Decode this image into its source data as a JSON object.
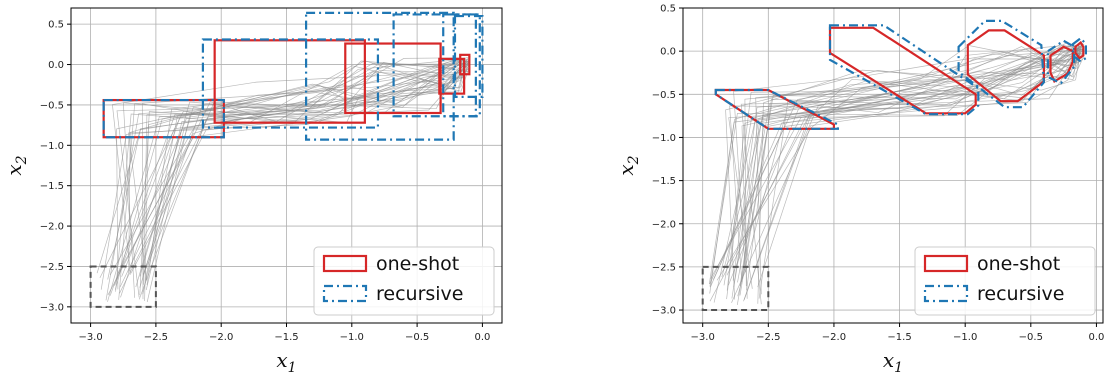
{
  "chart_data": [
    {
      "type": "line",
      "xlabel": "x1",
      "ylabel": "x2",
      "xlim": [
        -3.15,
        0.15
      ],
      "ylim": [
        -3.2,
        0.7
      ],
      "xticks": [
        -3.0,
        -2.5,
        -2.0,
        -1.5,
        -1.0,
        -0.5,
        0.0
      ],
      "xtick_labels": [
        "−3.0",
        "−2.5",
        "−2.0",
        "−1.5",
        "−1.0",
        "−0.5",
        "0.0"
      ],
      "yticks": [
        0.5,
        0.0,
        -0.5,
        -1.0,
        -1.5,
        -2.0,
        -2.5,
        -3.0
      ],
      "ytick_labels": [
        "0.5",
        "0.0",
        "−0.5",
        "−1.0",
        "−1.5",
        "−2.0",
        "−2.5",
        "−3.0"
      ],
      "grid": true,
      "legend_position": "bottom-right",
      "legend": [
        {
          "label": "one-shot",
          "color": "#d62728",
          "style": "solid"
        },
        {
          "label": "recursive",
          "color": "#1f77b4",
          "style": "dashdot"
        }
      ],
      "initial_set": {
        "x": [
          -3.0,
          -2.5
        ],
        "y": [
          -3.0,
          -2.5
        ],
        "color": "#555555",
        "style": "dashed"
      },
      "reach_sets": [
        {
          "method": "one-shot",
          "shape": "box",
          "x": [
            -2.9,
            -1.98
          ],
          "y": [
            -0.9,
            -0.44
          ]
        },
        {
          "method": "one-shot",
          "shape": "box",
          "x": [
            -2.05,
            -0.9
          ],
          "y": [
            -0.72,
            0.3
          ]
        },
        {
          "method": "one-shot",
          "shape": "box",
          "x": [
            -1.05,
            -0.32
          ],
          "y": [
            -0.6,
            0.26
          ]
        },
        {
          "method": "one-shot",
          "shape": "box",
          "x": [
            -0.33,
            -0.14
          ],
          "y": [
            -0.36,
            0.07
          ]
        },
        {
          "method": "one-shot",
          "shape": "box",
          "x": [
            -0.17,
            -0.1
          ],
          "y": [
            -0.12,
            0.12
          ]
        },
        {
          "method": "recursive",
          "shape": "box",
          "x": [
            -2.9,
            -1.98
          ],
          "y": [
            -0.9,
            -0.44
          ]
        },
        {
          "method": "recursive",
          "shape": "box",
          "x": [
            -2.14,
            -0.8
          ],
          "y": [
            -0.78,
            0.31
          ]
        },
        {
          "method": "recursive",
          "shape": "box",
          "x": [
            -1.35,
            -0.22
          ],
          "y": [
            -0.93,
            0.64
          ]
        },
        {
          "method": "recursive",
          "shape": "box",
          "x": [
            -0.68,
            -0.02
          ],
          "y": [
            -0.64,
            0.62
          ]
        },
        {
          "method": "recursive",
          "shape": "box",
          "x": [
            -0.3,
            -0.05
          ],
          "y": [
            -0.64,
            0.62
          ]
        },
        {
          "method": "recursive",
          "shape": "box",
          "x": [
            -0.21,
            0.0
          ],
          "y": [
            -0.4,
            0.6
          ]
        }
      ]
    },
    {
      "type": "line",
      "xlabel": "x1",
      "ylabel": "x2",
      "xlim": [
        -3.15,
        0.05
      ],
      "ylim": [
        -3.15,
        0.5
      ],
      "xticks": [
        -3.0,
        -2.5,
        -2.0,
        -1.5,
        -1.0,
        -0.5,
        0.0
      ],
      "xtick_labels": [
        "−3.0",
        "−2.5",
        "−2.0",
        "−1.5",
        "−1.0",
        "−0.5",
        "0.0"
      ],
      "yticks": [
        0.5,
        0.0,
        -0.5,
        -1.0,
        -1.5,
        -2.0,
        -2.5,
        -3.0
      ],
      "ytick_labels": [
        "0.5",
        "0.0",
        "−0.5",
        "−1.0",
        "−1.5",
        "−2.0",
        "−2.5",
        "−3.0"
      ],
      "grid": true,
      "legend_position": "bottom-right",
      "legend": [
        {
          "label": "one-shot",
          "color": "#d62728",
          "style": "solid"
        },
        {
          "label": "recursive",
          "color": "#1f77b4",
          "style": "dashdot"
        }
      ],
      "initial_set": {
        "x": [
          -3.0,
          -2.5
        ],
        "y": [
          -3.0,
          -2.5
        ],
        "color": "#555555",
        "style": "dashed"
      },
      "reach_sets": [
        {
          "method": "one-shot",
          "shape": "polygon",
          "points": [
            [
              -2.9,
              -0.45
            ],
            [
              -2.5,
              -0.45
            ],
            [
              -2.0,
              -0.85
            ],
            [
              -2.0,
              -0.9
            ],
            [
              -2.5,
              -0.9
            ],
            [
              -2.9,
              -0.5
            ]
          ]
        },
        {
          "method": "recursive",
          "shape": "polygon",
          "points": [
            [
              -2.9,
              -0.45
            ],
            [
              -2.5,
              -0.45
            ],
            [
              -1.97,
              -0.85
            ],
            [
              -1.97,
              -0.9
            ],
            [
              -2.5,
              -0.9
            ],
            [
              -2.9,
              -0.5
            ]
          ]
        },
        {
          "method": "one-shot",
          "shape": "polygon",
          "points": [
            [
              -2.03,
              0.27
            ],
            [
              -1.7,
              0.27
            ],
            [
              -0.92,
              -0.5
            ],
            [
              -0.92,
              -0.62
            ],
            [
              -1.0,
              -0.72
            ],
            [
              -1.3,
              -0.72
            ],
            [
              -2.03,
              -0.02
            ]
          ]
        },
        {
          "method": "recursive",
          "shape": "polygon",
          "points": [
            [
              -2.03,
              0.3
            ],
            [
              -1.62,
              0.3
            ],
            [
              -0.9,
              -0.43
            ],
            [
              -0.9,
              -0.63
            ],
            [
              -0.98,
              -0.73
            ],
            [
              -1.3,
              -0.73
            ],
            [
              -2.03,
              -0.1
            ]
          ]
        },
        {
          "method": "one-shot",
          "shape": "polygon",
          "points": [
            [
              -0.98,
              0.07
            ],
            [
              -0.82,
              0.24
            ],
            [
              -0.7,
              0.24
            ],
            [
              -0.4,
              -0.05
            ],
            [
              -0.4,
              -0.35
            ],
            [
              -0.6,
              -0.58
            ],
            [
              -0.73,
              -0.58
            ],
            [
              -0.98,
              -0.27
            ]
          ]
        },
        {
          "method": "recursive",
          "shape": "polygon",
          "points": [
            [
              -1.05,
              0.05
            ],
            [
              -0.85,
              0.35
            ],
            [
              -0.72,
              0.35
            ],
            [
              -0.42,
              0.07
            ],
            [
              -0.4,
              -0.36
            ],
            [
              -0.56,
              -0.65
            ],
            [
              -0.7,
              -0.65
            ],
            [
              -1.05,
              -0.24
            ]
          ]
        },
        {
          "method": "one-shot",
          "shape": "polygon",
          "points": [
            [
              -0.35,
              -0.05
            ],
            [
              -0.25,
              0.05
            ],
            [
              -0.18,
              0.0
            ],
            [
              -0.18,
              -0.12
            ],
            [
              -0.22,
              -0.26
            ],
            [
              -0.32,
              -0.35
            ],
            [
              -0.35,
              -0.25
            ]
          ]
        },
        {
          "method": "recursive",
          "shape": "polygon",
          "points": [
            [
              -0.37,
              0.0
            ],
            [
              -0.25,
              0.12
            ],
            [
              -0.17,
              0.05
            ],
            [
              -0.17,
              -0.18
            ],
            [
              -0.27,
              -0.37
            ],
            [
              -0.37,
              -0.3
            ]
          ]
        },
        {
          "method": "one-shot",
          "shape": "polygon",
          "points": [
            [
              -0.16,
              0.05
            ],
            [
              -0.12,
              0.1
            ],
            [
              -0.1,
              0.05
            ],
            [
              -0.1,
              -0.05
            ],
            [
              -0.13,
              -0.08
            ],
            [
              -0.16,
              -0.02
            ]
          ]
        },
        {
          "method": "recursive",
          "shape": "polygon",
          "points": [
            [
              -0.18,
              0.08
            ],
            [
              -0.12,
              0.15
            ],
            [
              -0.08,
              0.08
            ],
            [
              -0.08,
              -0.08
            ],
            [
              -0.12,
              -0.12
            ],
            [
              -0.18,
              -0.05
            ]
          ]
        }
      ]
    }
  ]
}
